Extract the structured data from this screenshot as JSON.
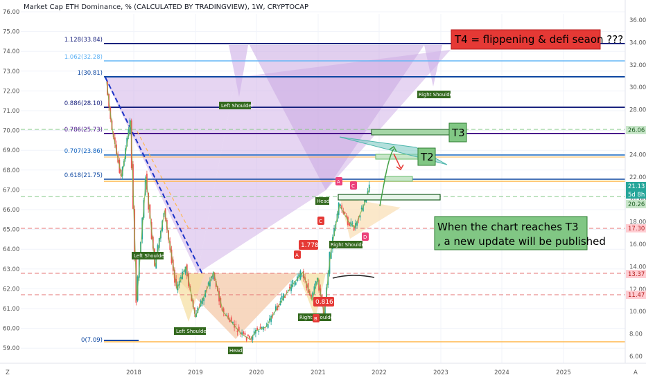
{
  "header": {
    "title": "Market Cap ETH Dominance, % (CALCULATED BY TRADINGVIEW), 1W, CRYPTOCAP"
  },
  "left_axis": {
    "ticks": [
      "76.00",
      "75.00",
      "74.00",
      "73.00",
      "72.00",
      "71.00",
      "70.00",
      "69.00",
      "68.00",
      "67.00",
      "66.00",
      "65.00",
      "64.00",
      "63.00",
      "62.00",
      "61.00",
      "60.00",
      "59.00"
    ]
  },
  "right_axis": {
    "ticks": [
      "36.00",
      "34.00",
      "32.00",
      "30.00",
      "28.00",
      "26.00",
      "24.00",
      "22.00",
      "20.00",
      "18.00",
      "16.00",
      "14.00",
      "12.00",
      "10.00",
      "8.00",
      "6.00"
    ],
    "price_tags": [
      {
        "text": "26.06",
        "bg": "#c8e6c9",
        "fg": "#1b5e20"
      },
      {
        "text": "21.13",
        "bg": "#26a69a",
        "fg": "#ffffff"
      },
      {
        "text": "5d 8h",
        "bg": "#26a69a",
        "fg": "#ffffff"
      },
      {
        "text": "20.26",
        "bg": "#c8e6c9",
        "fg": "#1b5e20"
      },
      {
        "text": "17.30",
        "bg": "#ffcdd2",
        "fg": "#b71c1c"
      },
      {
        "text": "13.37",
        "bg": "#ffcdd2",
        "fg": "#b71c1c"
      },
      {
        "text": "11.47",
        "bg": "#ffcdd2",
        "fg": "#b71c1c"
      }
    ]
  },
  "time_axis": {
    "ticks": [
      "2018",
      "2019",
      "2020",
      "2021",
      "2022",
      "2023",
      "2024",
      "2025"
    ]
  },
  "fib_levels": [
    {
      "label": "1.128(33.84)",
      "color": "#1a237e"
    },
    {
      "label": "1.062(32.28)",
      "color": "#64b5f6"
    },
    {
      "label": "1(30.81)",
      "color": "#0d47a1"
    },
    {
      "label": "0.886(28.10)",
      "color": "#1a237e"
    },
    {
      "label": "0.786(25.73)",
      "color": "#4a148c"
    },
    {
      "label": "0.707(23.86)",
      "color": "#1565c0"
    },
    {
      "label": "0.618(21.75)",
      "color": "#0d47a1"
    },
    {
      "label": "0(7.09)",
      "color": "#0d47a1"
    }
  ],
  "pattern_labels": {
    "left_shoulder_top": "Left Shoulder",
    "right_shoulder_top": "Right Shoulder",
    "head_mid": "Head",
    "left_shoulder_1": "Left Shoulder",
    "left_shoulder_2": "Left Shoulder",
    "head_bottom": "Head",
    "right_shoulder_bottom": "Right Shoulder",
    "right_shoulder_2": "Right Shoulder"
  },
  "wave_labels": {
    "a1": "A",
    "b1": "B",
    "c1": "C",
    "a2": "A",
    "c2": "C",
    "d2": "D"
  },
  "ratio_labels": {
    "r1": "1.778",
    "r2": "0.816"
  },
  "notes": {
    "t4": "T4 = flippening & defi seaon ???",
    "t3": "T3",
    "t2": "T2",
    "update_line1": "When the chart reaches T3",
    "update_line2": ", a new update will be published"
  },
  "footer": {
    "tv_logo": "Z",
    "auto": "A"
  },
  "chart_data": {
    "type": "line",
    "title": "Market Cap ETH Dominance, % (CALCULATED BY TRADINGVIEW), 1W, CRYPTOCAP",
    "ylabel_left": "",
    "ylabel_right": "",
    "y_left_range": [
      59,
      76
    ],
    "y_right_range": [
      6,
      36
    ],
    "x_range": [
      "2017-05",
      "2025-12"
    ],
    "series": [
      {
        "x": [
          "2017.55",
          "2017.65",
          "2017.80",
          "2017.95",
          "2018.05",
          "2018.20",
          "2018.35",
          "2018.50",
          "2018.70",
          "2018.85",
          "2019.00",
          "2019.15",
          "2019.30",
          "2019.45",
          "2019.60",
          "2019.75",
          "2019.90",
          "2020.00",
          "2020.15",
          "2020.30",
          "2020.45",
          "2020.60",
          "2020.75",
          "2020.90",
          "2021.00",
          "2021.10",
          "2021.20",
          "2021.35",
          "2021.50",
          "2021.60",
          "2021.75",
          "2021.85"
        ],
        "y": [
          30.5,
          26,
          22,
          27,
          11,
          22,
          14,
          19,
          12,
          14,
          9.5,
          11.5,
          13.5,
          10,
          9,
          8,
          7.5,
          8.3,
          8.6,
          10,
          11.3,
          12.5,
          13.5,
          11,
          13,
          9.6,
          15,
          19.5,
          18,
          17.5,
          19.5,
          21.13
        ]
      }
    ],
    "fib_retracement": [
      {
        "ratio": "1.128",
        "value": 33.84
      },
      {
        "ratio": "1.062",
        "value": 32.28
      },
      {
        "ratio": "1",
        "value": 30.81
      },
      {
        "ratio": "0.886",
        "value": 28.1
      },
      {
        "ratio": "0.786",
        "value": 25.73
      },
      {
        "ratio": "0.707",
        "value": 23.86
      },
      {
        "ratio": "0.618",
        "value": 21.75
      },
      {
        "ratio": "0",
        "value": 7.09
      }
    ],
    "horizontal_levels": [
      26.06,
      20.26,
      17.3,
      13.37,
      11.47
    ],
    "last_price": 21.13,
    "grid": true
  }
}
